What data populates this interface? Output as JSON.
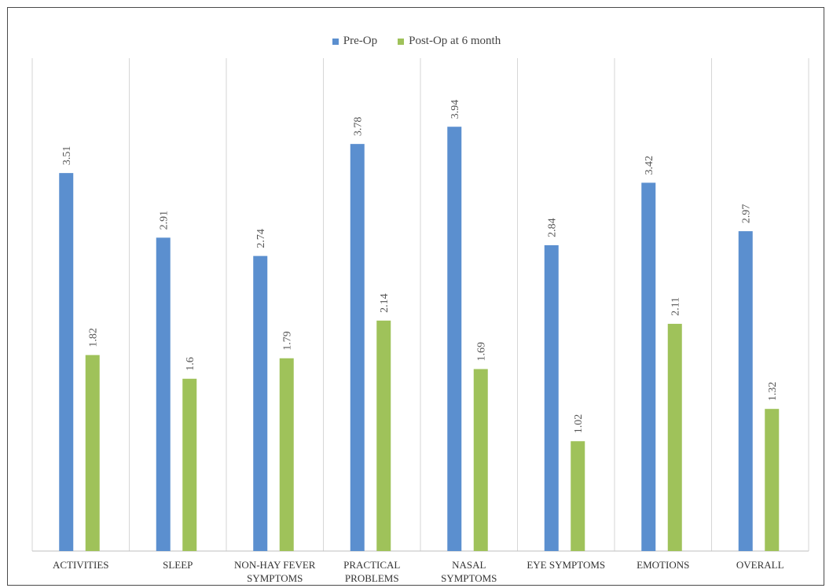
{
  "chart_data": {
    "type": "bar",
    "categories": [
      [
        "ACTIVITIES"
      ],
      [
        "SLEEP"
      ],
      [
        "NON-HAY FEVER",
        "SYMPTOMS"
      ],
      [
        "PRACTICAL",
        "PROBLEMS"
      ],
      [
        "NASAL",
        "SYMPTOMS"
      ],
      [
        "EYE SYMPTOMS"
      ],
      [
        "EMOTIONS"
      ],
      [
        "OVERALL"
      ]
    ],
    "series": [
      {
        "name": "Pre-Op",
        "color": "#5b8fcf",
        "values": [
          3.51,
          2.91,
          2.74,
          3.78,
          3.94,
          2.84,
          3.42,
          2.97
        ],
        "labels": [
          "3.51",
          "2.91",
          "2.74",
          "3.78",
          "3.94",
          "2.84",
          "3.42",
          "2.97"
        ]
      },
      {
        "name": "Post-Op at 6 month",
        "color": "#9fc25a",
        "values": [
          1.82,
          1.6,
          1.79,
          2.14,
          1.69,
          1.02,
          2.11,
          1.32
        ],
        "labels": [
          "1.82",
          "1.6",
          "1.79",
          "2.14",
          "1.69",
          "1.02",
          "2.11",
          "1.32"
        ]
      }
    ],
    "title": "",
    "xlabel": "",
    "ylabel": "",
    "ylim": [
      0,
      4.5
    ],
    "legend_position": "top-center",
    "vertical_grid": true
  }
}
